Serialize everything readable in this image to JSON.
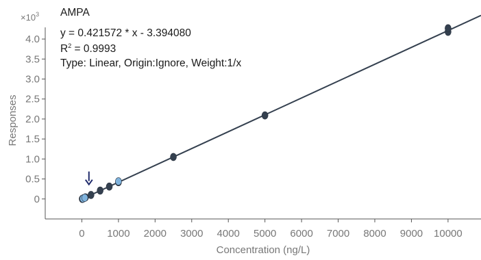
{
  "chart_data": {
    "type": "scatter",
    "title": "AMPA",
    "equation": "y = 0.421572 * x  - 3.394080",
    "r2_label": "R",
    "r2_sup": "2",
    "r2_value": " = 0.9993",
    "fit_info": "Type: Linear, Origin:Ignore, Weight:1/x",
    "xlabel": "Concentration (ng/L)",
    "ylabel": "Responses",
    "y_multiplier_base": "×10",
    "y_multiplier_exp": "3",
    "xlim": [
      -1000,
      10900
    ],
    "ylim": [
      -0.5,
      4.6
    ],
    "x_ticks": [
      0,
      1000,
      2000,
      3000,
      4000,
      5000,
      6000,
      7000,
      8000,
      9000,
      10000
    ],
    "y_ticks": [
      0,
      0.5,
      1.0,
      1.5,
      2.0,
      2.5,
      3.0,
      3.5,
      4.0
    ],
    "y_tick_labels": [
      "0",
      "0.5",
      "1.0",
      "1.5",
      "2.0",
      "2.5",
      "3.0",
      "3.5",
      "4.0"
    ],
    "fit_line": {
      "slope": 0.421572,
      "intercept": -3.39408,
      "x_range": [
        0,
        10900
      ]
    },
    "series": [
      {
        "color": "#34404f",
        "x": [
          10,
          20,
          50,
          100,
          250,
          500,
          750,
          1000,
          2500,
          5000,
          10000,
          10000
        ],
        "y": [
          0.002,
          0.005,
          0.02,
          0.04,
          0.1,
          0.21,
          0.31,
          0.42,
          1.05,
          2.09,
          4.18,
          4.27
        ]
      },
      {
        "color": "#7fb3dd",
        "x": [
          30,
          80,
          1000
        ],
        "y": [
          0.01,
          0.03,
          0.44
        ]
      }
    ],
    "annotation_arrow": {
      "x": 100,
      "y": 0.55
    },
    "colors": {
      "line": "#34404f",
      "axis": "#555555",
      "tick_text": "#777777",
      "arrow": "#1f2a6b"
    },
    "grid": false
  }
}
